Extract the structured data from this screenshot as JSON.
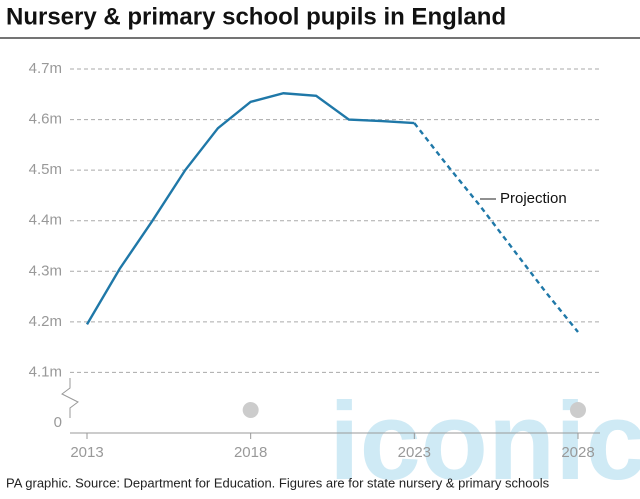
{
  "chart_data": {
    "type": "line",
    "title": "Nursery & primary school pupils in England",
    "footnote": "PA graphic. Source: Department for Education. Figures are for state nursery & primary schools",
    "watermark": "iconic",
    "x": [
      2013,
      2014,
      2015,
      2016,
      2017,
      2018,
      2019,
      2020,
      2021,
      2022,
      2023,
      2024,
      2025,
      2026,
      2027,
      2028
    ],
    "xlim": [
      2013,
      2028
    ],
    "xticks": [
      2013,
      2018,
      2023,
      2028
    ],
    "ylim": [
      0,
      4.7
    ],
    "axis_break": [
      0,
      4.0
    ],
    "yticks": [
      0,
      {
        "value": 4.1,
        "label": "4.1m"
      },
      {
        "value": 4.2,
        "label": "4.2m"
      },
      {
        "value": 4.3,
        "label": "4.3m"
      },
      {
        "value": 4.4,
        "label": "4.4m"
      },
      {
        "value": 4.5,
        "label": "4.5m"
      },
      {
        "value": 4.6,
        "label": "4.6m"
      },
      {
        "value": 4.7,
        "label": "4.7m"
      }
    ],
    "grid": true,
    "series": [
      {
        "color": "#1f78a8",
        "dashed": false,
        "values": [
          4.195,
          4.305,
          4.4,
          4.5,
          4.583,
          4.635,
          4.652,
          4.647,
          4.6,
          4.597,
          4.593,
          null,
          null,
          null,
          null,
          null
        ]
      },
      {
        "name": "Projection",
        "color": "#1f78a8",
        "dashed": true,
        "values": [
          null,
          null,
          null,
          null,
          null,
          null,
          null,
          null,
          null,
          null,
          4.593,
          4.51,
          4.43,
          4.345,
          4.26,
          4.18
        ]
      }
    ]
  }
}
